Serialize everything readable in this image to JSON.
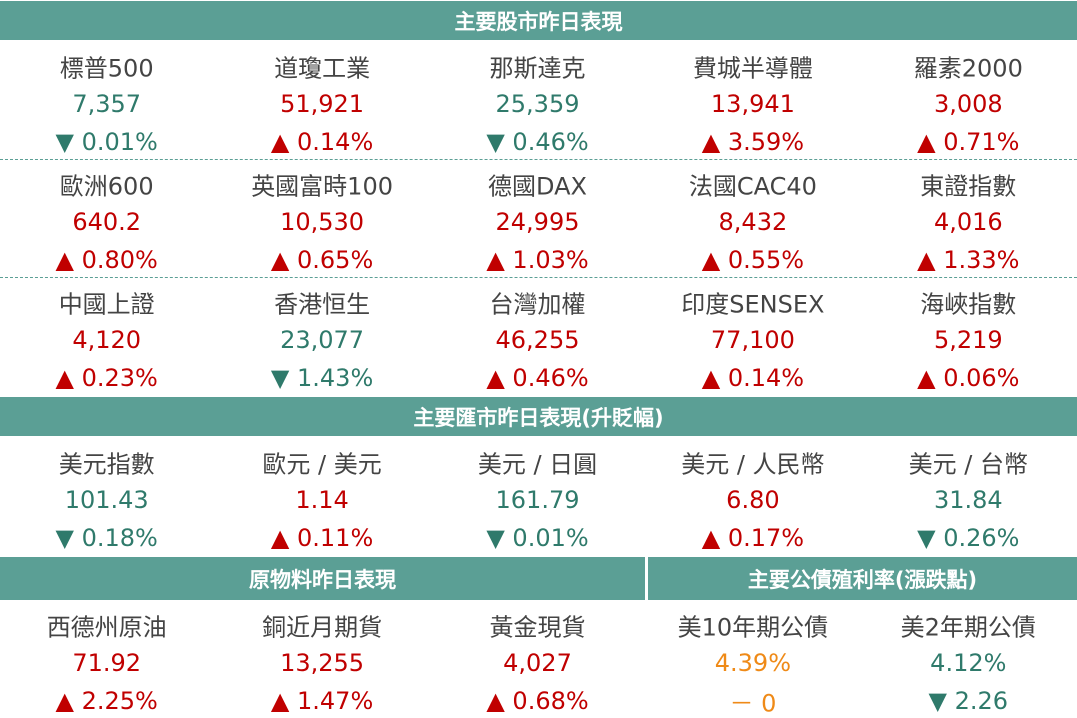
{
  "sections": [
    {
      "title": "主要股市昨日表現",
      "rows": [
        [
          {
            "name": "標普500",
            "value": "7,357",
            "change": "▼ 0.01%",
            "color": "#2f7a6b"
          },
          {
            "name": "道瓊工業",
            "value": "51,921",
            "change": "▲ 0.14%",
            "color": "#c00000"
          },
          {
            "name": "那斯達克",
            "value": "25,359",
            "change": "▼ 0.46%",
            "color": "#2f7a6b"
          },
          {
            "name": "費城半導體",
            "value": "13,941",
            "change": "▲ 3.59%",
            "color": "#c00000"
          },
          {
            "name": "羅素2000",
            "value": "3,008",
            "change": "▲ 0.71%",
            "color": "#c00000"
          }
        ],
        [
          {
            "name": "歐洲600",
            "value": "640.2",
            "change": "▲ 0.80%",
            "color": "#c00000"
          },
          {
            "name": "英國富時100",
            "value": "10,530",
            "change": "▲ 0.65%",
            "color": "#c00000"
          },
          {
            "name": "德國DAX",
            "value": "24,995",
            "change": "▲ 1.03%",
            "color": "#c00000"
          },
          {
            "name": "法國CAC40",
            "value": "8,432",
            "change": "▲ 0.55%",
            "color": "#c00000"
          },
          {
            "name": "東證指數",
            "value": "4,016",
            "change": "▲ 1.33%",
            "color": "#c00000"
          }
        ],
        [
          {
            "name": "中國上證",
            "value": "4,120",
            "change": "▲ 0.23%",
            "color": "#c00000"
          },
          {
            "name": "香港恒生",
            "value": "23,077",
            "change": "▼ 1.43%",
            "color": "#2f7a6b"
          },
          {
            "name": "台灣加權",
            "value": "46,255",
            "change": "▲ 0.46%",
            "color": "#c00000"
          },
          {
            "name": "印度SENSEX",
            "value": "77,100",
            "change": "▲ 0.14%",
            "color": "#c00000"
          },
          {
            "name": "海峽指數",
            "value": "5,219",
            "change": "▲ 0.06%",
            "color": "#c00000"
          }
        ]
      ]
    },
    {
      "title": "主要匯市昨日表現(升貶幅)",
      "rows": [
        [
          {
            "name": "美元指數",
            "value": "101.43",
            "change": "▼ 0.18%",
            "color": "#2f7a6b"
          },
          {
            "name": "歐元 / 美元",
            "value": "1.14",
            "change": "▲ 0.11%",
            "color": "#c00000"
          },
          {
            "name": "美元 / 日圓",
            "value": "161.79",
            "change": "▼ 0.01%",
            "color": "#2f7a6b"
          },
          {
            "name": "美元 / 人民幣",
            "value": "6.80",
            "change": "▲ 0.17%",
            "color": "#c00000"
          },
          {
            "name": "美元 / 台幣",
            "value": "31.84",
            "change": "▼ 0.26%",
            "color": "#2f7a6b"
          }
        ]
      ]
    }
  ],
  "bottom": {
    "left": {
      "title": "原物料昨日表現",
      "items": [
        {
          "name": "西德州原油",
          "value": "71.92",
          "change": "▲ 2.25%",
          "color": "#c00000"
        },
        {
          "name": "銅近月期貨",
          "value": "13,255",
          "change": "▲ 1.47%",
          "color": "#c00000"
        },
        {
          "name": "黃金現貨",
          "value": "4,027",
          "change": "▲ 0.68%",
          "color": "#c00000"
        }
      ]
    },
    "right": {
      "title": "主要公債殖利率(漲跌點)",
      "items": [
        {
          "name": "美10年期公債",
          "value": "4.39%",
          "change": "－ 0",
          "color": "#ef8a17"
        },
        {
          "name": "美2年期公債",
          "value": "4.12%",
          "change": "▼ 2.26",
          "color": "#2f7a6b"
        }
      ]
    }
  }
}
